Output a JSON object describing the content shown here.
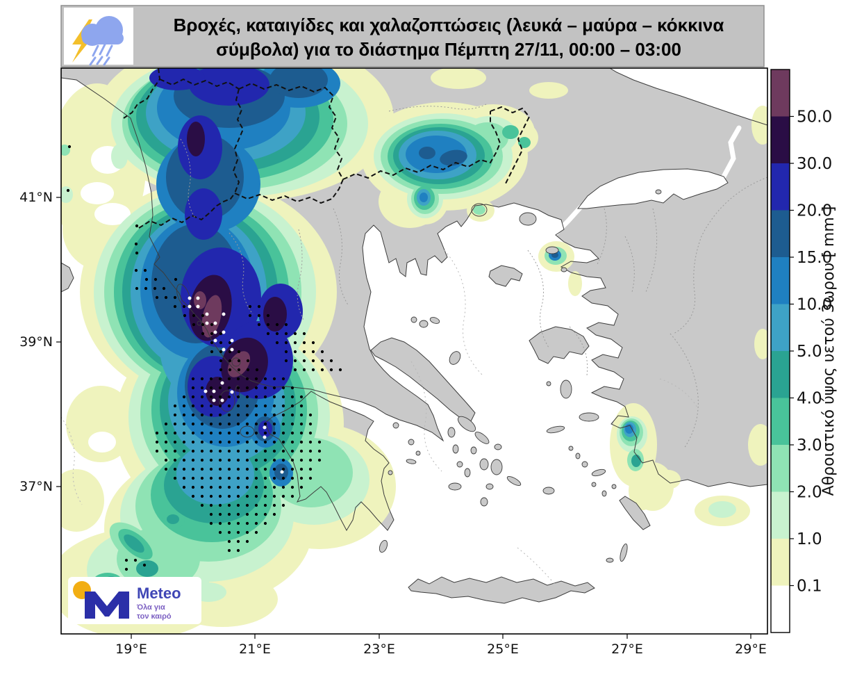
{
  "title": {
    "line1": "Βροχές, καταιγίδες και χαλαζοπτώσεις (λευκά – μαύρα – κόκκινα",
    "line2": "σύμβολα) για το διάστημα Πέμπτη 27/11, 00:00 – 03:00"
  },
  "axes": {
    "lon_labels": [
      "19°E",
      "21°E",
      "23°E",
      "25°E",
      "27°E",
      "29°E"
    ],
    "lat_labels": [
      "41°N",
      "39°N",
      "37°N"
    ]
  },
  "colorbar": {
    "label": "Αθροιστικό ύψος υετού 3ωρου [ mm ]",
    "tick_labels": [
      "50.0",
      "30.0",
      "20.0",
      "15.0",
      "10.0",
      "5.0",
      "4.0",
      "3.0",
      "2.0",
      "1.0",
      "0.1"
    ],
    "levels_mm": [
      0.1,
      1,
      2,
      3,
      4,
      5,
      10,
      15,
      20,
      30,
      50
    ],
    "band_colors_top_to_bottom": [
      "#6e3a5e",
      "#2a0d45",
      "#2227ae",
      "#1d5c90",
      "#1f80c1",
      "#3ea2c6",
      "#2aa392",
      "#49c39a",
      "#8fe3b4",
      "#c8f2cf",
      "#eff3bd",
      "#ffffff"
    ]
  },
  "level_fills": {
    "gt50": "#6e3a5e",
    "30-50": "#2a0d45",
    "20-30": "#2227ae",
    "15-20": "#1d5c90",
    "10-15": "#1f80c1",
    "5-10": "#3ea2c6",
    "4-5": "#2aa392",
    "3-4": "#49c39a",
    "2-3": "#8fe3b4",
    "1-2": "#c8f2cf",
    "0.1-1": "#eff3bd"
  },
  "map_colors": {
    "land": "#c9c9c9",
    "sea": "#ffffff",
    "coast": "#3c3c3c",
    "country_border": "#111111",
    "admin_border": "#9b9b9b",
    "maritime": "#b8b8b8",
    "title_bar": "#c2c2c2"
  },
  "weather_icon": {
    "cloud_color": "#8ea6ee",
    "lightning_color": "#f3bf2b"
  },
  "logo": {
    "brand": "Meteo",
    "tagline1": "Όλα για",
    "tagline2": "τον καιρό",
    "m_color": "#2b2fa8",
    "dot_color": "#f2ae13",
    "text_color": "#3f46b5",
    "tagline_color": "#7b5fc2"
  },
  "symbols": {
    "dot_spacing": 13,
    "black_dot_rows": [
      [
        325,
        [
          197,
          197
        ]
      ],
      [
        351,
        [
          196,
          196
        ]
      ],
      [
        364,
        [
          197,
          197
        ]
      ],
      [
        389,
        [
          196,
          210
        ]
      ],
      [
        402,
        [
          211,
          224
        ],
        [
          253,
          253
        ]
      ],
      [
        415,
        [
          197,
          240
        ]
      ],
      [
        428,
        [
          226,
          253
        ]
      ],
      [
        441,
        [
          252,
          265
        ],
        [
          360,
          373
        ]
      ],
      [
        454,
        [
          266,
          292
        ],
        [
          360,
          386
        ]
      ],
      [
        467,
        [
          279,
          305
        ],
        [
          373,
          412
        ]
      ],
      [
        480,
        [
          292,
          318
        ],
        [
          386,
          438
        ]
      ],
      [
        493,
        [
          305,
          331
        ],
        [
          399,
          451
        ]
      ],
      [
        506,
        [
          305,
          344
        ],
        [
          412,
          464
        ]
      ],
      [
        519,
        [
          318,
          357
        ],
        [
          412,
          477
        ]
      ],
      [
        532,
        [
          318,
          370
        ],
        [
          425,
          490
        ]
      ],
      [
        545,
        [
          278,
          408
        ]
      ],
      [
        558,
        [
          278,
          421
        ]
      ],
      [
        571,
        [
          265,
          434
        ]
      ],
      [
        584,
        [
          252,
          434
        ]
      ],
      [
        597,
        [
          252,
          447
        ]
      ],
      [
        610,
        [
          239,
          447
        ]
      ],
      [
        623,
        [
          226,
          447
        ]
      ],
      [
        636,
        [
          226,
          460
        ]
      ],
      [
        649,
        [
          226,
          460
        ]
      ],
      [
        662,
        [
          239,
          460
        ]
      ],
      [
        675,
        [
          239,
          447
        ]
      ],
      [
        688,
        [
          252,
          447
        ]
      ],
      [
        701,
        [
          265,
          434
        ]
      ],
      [
        714,
        [
          278,
          421
        ]
      ],
      [
        727,
        [
          291,
          408
        ]
      ],
      [
        740,
        [
          304,
          395
        ]
      ],
      [
        753,
        [
          304,
          382
        ]
      ],
      [
        766,
        [
          317,
          369
        ]
      ],
      [
        779,
        [
          330,
          356
        ]
      ],
      [
        792,
        [
          330,
          343
        ]
      ]
    ],
    "black_dot_singles": [
      [
        100,
        211
      ],
      [
        98,
        274
      ],
      [
        182,
        806
      ],
      [
        195,
        806
      ],
      [
        182,
        819
      ],
      [
        208,
        813
      ]
    ],
    "white_dots": [
      [
        273,
        429
      ],
      [
        285,
        429
      ],
      [
        273,
        441
      ],
      [
        285,
        441
      ],
      [
        298,
        452
      ],
      [
        298,
        465
      ],
      [
        310,
        465
      ],
      [
        322,
        452
      ],
      [
        310,
        478
      ],
      [
        322,
        478
      ],
      [
        310,
        490
      ],
      [
        334,
        490
      ],
      [
        322,
        503
      ],
      [
        334,
        503
      ],
      [
        296,
        563
      ],
      [
        308,
        563
      ],
      [
        320,
        551
      ],
      [
        308,
        576
      ],
      [
        320,
        576
      ],
      [
        334,
        564
      ],
      [
        381,
        615
      ],
      [
        381,
        629
      ],
      [
        406,
        679
      ]
    ]
  }
}
